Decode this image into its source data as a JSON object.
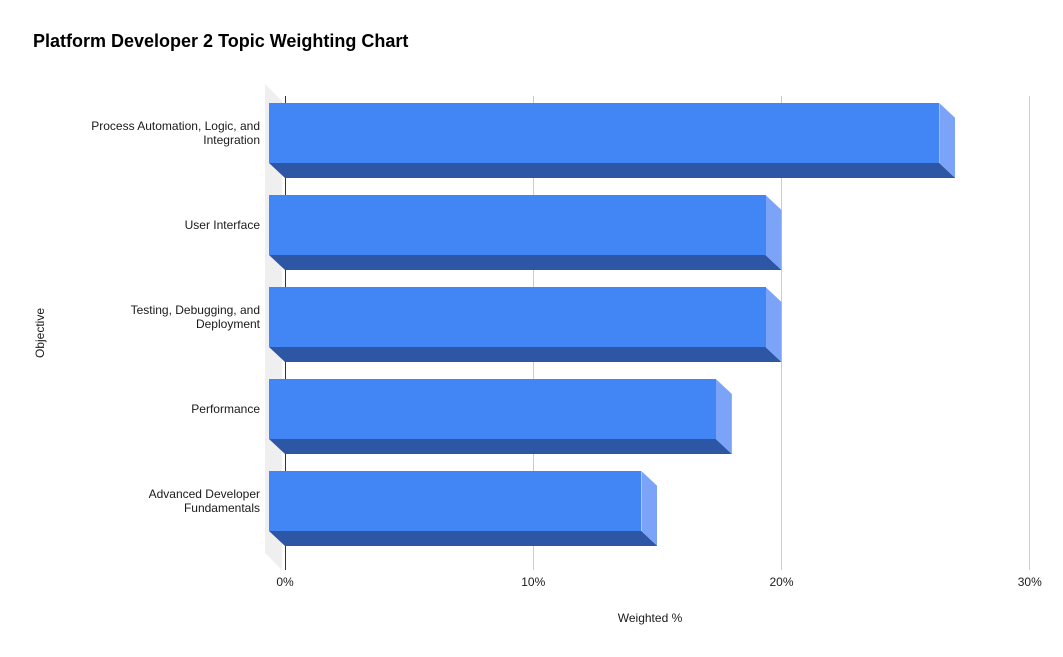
{
  "chart_data": {
    "type": "bar",
    "orientation": "horizontal",
    "style": "3d",
    "title": "Platform Developer 2 Topic Weighting Chart",
    "xlabel": "Weighted %",
    "ylabel": "Objective",
    "categories": [
      {
        "name": "Process Automation, Logic, and Integration",
        "lines": [
          "Process Automation, Logic, and",
          "Integration"
        ]
      },
      {
        "name": "User Interface",
        "lines": [
          "User Interface"
        ]
      },
      {
        "name": "Testing, Debugging, and Deployment",
        "lines": [
          "Testing, Debugging, and",
          "Deployment"
        ]
      },
      {
        "name": "Performance",
        "lines": [
          "Performance"
        ]
      },
      {
        "name": "Advanced Developer Fundamentals",
        "lines": [
          "Advanced Developer",
          "Fundamentals"
        ]
      }
    ],
    "values": [
      27,
      20,
      20,
      18,
      15
    ],
    "unit": "%",
    "x_ticks": [
      {
        "value": 0,
        "label": "0%"
      },
      {
        "value": 10,
        "label": "10%"
      },
      {
        "value": 20,
        "label": "20%"
      },
      {
        "value": 30,
        "label": "30%"
      }
    ],
    "xlim": [
      0,
      30
    ],
    "grid": true,
    "legend": "none",
    "colors": {
      "bar_front": "#4285f4",
      "bar_bottom": "#2d56a5",
      "bar_side": "#7ba4f8",
      "wall": "#efefef",
      "gridline": "#cccccc",
      "zero_line": "#333333",
      "text": "#1a1a1a",
      "background": "#ffffff"
    }
  }
}
